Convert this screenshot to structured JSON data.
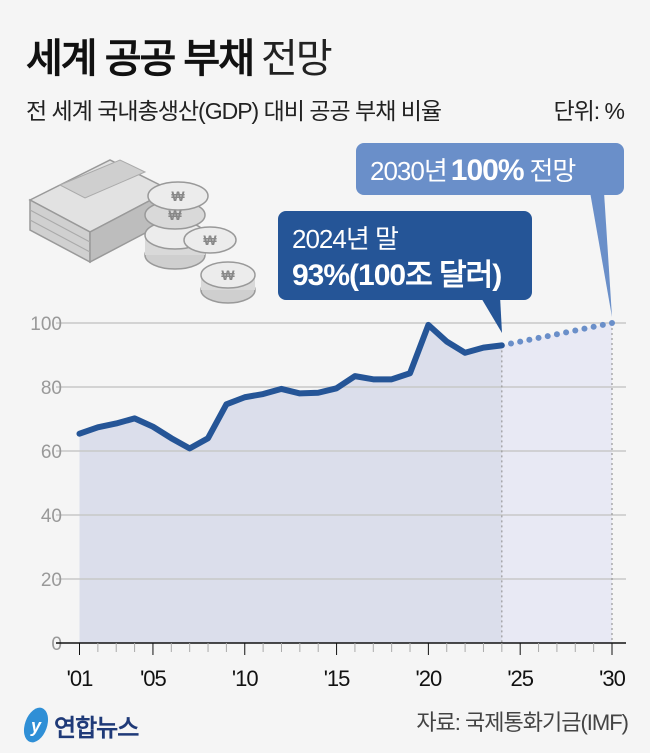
{
  "header": {
    "title_bold": "세계 공공 부채",
    "title_light": "전망",
    "subtitle": "전 세계 국내총생산(GDP) 대비 공공 부채 비율",
    "unit": "단위: %"
  },
  "callouts": {
    "forecast_year": "2030년",
    "forecast_value": "100%",
    "forecast_suffix": "전망",
    "current_line1": "2024년 말",
    "current_line2": "93%(100조 달러)"
  },
  "footer": {
    "logo_text": "연합뉴스",
    "source": "자료: 국제통화기금(IMF)"
  },
  "colors": {
    "line": "#255597",
    "forecast": "#6a8fc9",
    "area": "#d8dbea",
    "area_forecast": "#e8e9f4",
    "background": "#f5f5f5"
  },
  "chart_data": {
    "type": "line",
    "title": "세계 공공 부채 전망",
    "ylabel": "%",
    "xlim": [
      2001,
      2030
    ],
    "ylim": [
      0,
      100
    ],
    "yticks": [
      0,
      20,
      40,
      60,
      80,
      100
    ],
    "xtick_labels": [
      {
        "year": 2001,
        "label": "'01"
      },
      {
        "year": 2005,
        "label": "'05"
      },
      {
        "year": 2010,
        "label": "'10"
      },
      {
        "year": 2015,
        "label": "'15"
      },
      {
        "year": 2020,
        "label": "'20"
      },
      {
        "year": 2025,
        "label": "'25"
      },
      {
        "year": 2030,
        "label": "'30"
      }
    ],
    "grid": true,
    "series": [
      {
        "name": "actual",
        "x": [
          2001,
          2002,
          2003,
          2004,
          2005,
          2006,
          2007,
          2008,
          2009,
          2010,
          2011,
          2012,
          2013,
          2014,
          2015,
          2016,
          2017,
          2018,
          2019,
          2020,
          2021,
          2022,
          2023,
          2024
        ],
        "values": [
          65.4,
          67.4,
          68.6,
          70.2,
          67.6,
          64.0,
          60.8,
          64.0,
          74.6,
          76.8,
          77.8,
          79.4,
          78.0,
          78.2,
          79.6,
          83.4,
          82.4,
          82.4,
          84.3,
          99.4,
          94.2,
          90.7,
          92.3,
          93.0
        ]
      },
      {
        "name": "forecast",
        "x": [
          2024,
          2030
        ],
        "values": [
          93.0,
          100.0
        ]
      }
    ]
  }
}
